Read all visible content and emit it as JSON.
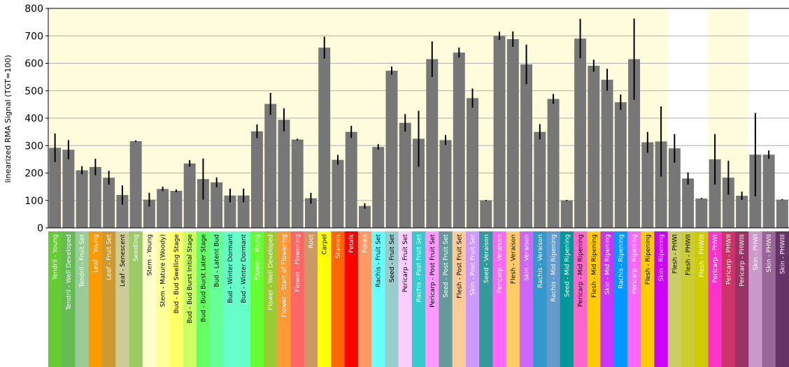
{
  "chart_data": {
    "type": "bar",
    "ylabel": "linearized RMA Signal (TGT=100)",
    "ylim": [
      0,
      800
    ],
    "yticks": [
      0,
      100,
      200,
      300,
      400,
      500,
      600,
      700,
      800
    ],
    "grid": "horizontal",
    "bar_color": "#777777",
    "background_color": "#fefcdc",
    "categories": [
      "Tendril - Young",
      "Tendril - Well Developed",
      "Tendril - Fruit Set",
      "Leaf - Young",
      "Leaf - Fruit Set",
      "Leaf - Senescent",
      "Seedling",
      "Stem - Young",
      "Stem - Mature (Woody)",
      "Bud - Bud Swelling Stage",
      "Bud - Bud Burst Initial Stage",
      "Bud - Bud Burst Later Stage",
      "Bud - Latent Bud",
      "Bud - Winter Dormant",
      "Bud - Winter Dormant",
      "Flower - Young",
      "Flower - Well Developed",
      "Flower - Start of Flowering",
      "Flower - Flowering",
      "Root",
      "Carpel",
      "Stamen",
      "Petals",
      "Pollen",
      "Rachis - Fruit Set",
      "Seed - Fruit Set",
      "Pericarp - Fruit Set",
      "Rachis - Post Fruit Set",
      "Pericarp - Post Fruit Set",
      "Seed - Post Fruit Set",
      "Flesh - Post Fruit Set",
      "Skin - Post Fruit Set",
      "Seed - Veraison",
      "Pericarp - Veraison",
      "Flesh - Veraison",
      "Skin - Veraison",
      "Rachis - Veraison",
      "Rachis - Mid Ripening",
      "Seed - Mid Ripening",
      "Pericarp - Mid Ripening",
      "Flesh - Mid Ripening",
      "Skin - Mid Ripening",
      "Rachis - Ripening",
      "Pericarp - Ripening",
      "Flesh - Ripening",
      "Skin - Ripening",
      "Flesh - PHWI",
      "Flesh - PHWII",
      "Flesh - PHWIII",
      "Pericarp - PHWI",
      "Pericarp - PHWII",
      "Pericarp - PHWIII",
      "Skin - PHWI",
      "Skin - PHWII",
      "Skin - PHWIII"
    ],
    "values": [
      292,
      285,
      210,
      222,
      183,
      120,
      316,
      103,
      142,
      135,
      235,
      178,
      166,
      118,
      118,
      352,
      452,
      394,
      322,
      108,
      657,
      248,
      350,
      80,
      295,
      573,
      383,
      325,
      615,
      320,
      639,
      473,
      100,
      700,
      688,
      596,
      350,
      470,
      100,
      690,
      591,
      540,
      458,
      615,
      312,
      315,
      290,
      180,
      107,
      250,
      183,
      117,
      267,
      267,
      103
    ],
    "errors": [
      52,
      35,
      15,
      30,
      25,
      35,
      3,
      25,
      8,
      5,
      12,
      75,
      18,
      25,
      25,
      25,
      40,
      42,
      3,
      20,
      40,
      18,
      22,
      10,
      10,
      15,
      32,
      102,
      65,
      18,
      18,
      35,
      2,
      15,
      28,
      72,
      28,
      18,
      2,
      72,
      22,
      40,
      28,
      148,
      38,
      128,
      52,
      22,
      2,
      92,
      62,
      15,
      152,
      15,
      2
    ],
    "label_colors": [
      "#66cc33",
      "#66bb55",
      "#99cc99",
      "#ff9900",
      "#cc9933",
      "#cccc99",
      "#99cc66",
      "#ffffcc",
      "#ffff99",
      "#ffff66",
      "#ccff66",
      "#66ff66",
      "#66ff99",
      "#66ffcc",
      "#66ffcc",
      "#66ff33",
      "#99cc33",
      "#ff9933",
      "#ff6666",
      "#cc9966",
      "#ffff00",
      "#ff6600",
      "#ff0000",
      "#ff9966",
      "#66ffff",
      "#99cccc",
      "#ffccff",
      "#33cccc",
      "#ff99ff",
      "#669999",
      "#ffcc99",
      "#cc99ff",
      "#339999",
      "#ff66ff",
      "#ffcc66",
      "#cc66ff",
      "#3399cc",
      "#6699cc",
      "#009999",
      "#ff66cc",
      "#ffcc00",
      "#cc33ff",
      "#0099ff",
      "#ff66ff",
      "#ffcc00",
      "#cc00ff",
      "#cccc66",
      "#cccc33",
      "#cccc00",
      "#ff33cc",
      "#cc3366",
      "#993366",
      "#cc99cc",
      "#996699",
      "#663366"
    ],
    "label_text_colors": [
      "#ffffff",
      "#ffffff",
      "#ffffff",
      "#ffffff",
      "#ffffff",
      "#000000",
      "#ffffff",
      "#000000",
      "#000000",
      "#000000",
      "#000000",
      "#000000",
      "#000000",
      "#000000",
      "#000000",
      "#ffffff",
      "#ffffff",
      "#ffffff",
      "#ffffff",
      "#ffffff",
      "#000000",
      "#ffffff",
      "#ffffff",
      "#ffffff",
      "#000000",
      "#000000",
      "#000000",
      "#ffffff",
      "#000000",
      "#ffffff",
      "#000000",
      "#ffffff",
      "#ffffff",
      "#ffffff",
      "#000000",
      "#ffffff",
      "#ffffff",
      "#ffffff",
      "#ffffff",
      "#000000",
      "#000000",
      "#ffffff",
      "#ffffff",
      "#ffffff",
      "#000000",
      "#ffffff",
      "#000000",
      "#000000",
      "#ffffff",
      "#ffffff",
      "#ffffff",
      "#ffffff",
      "#ffffff",
      "#ffffff",
      "#ffffff"
    ],
    "shaded_ranges": [
      [
        0,
        45
      ],
      [
        49,
        51
      ]
    ]
  }
}
